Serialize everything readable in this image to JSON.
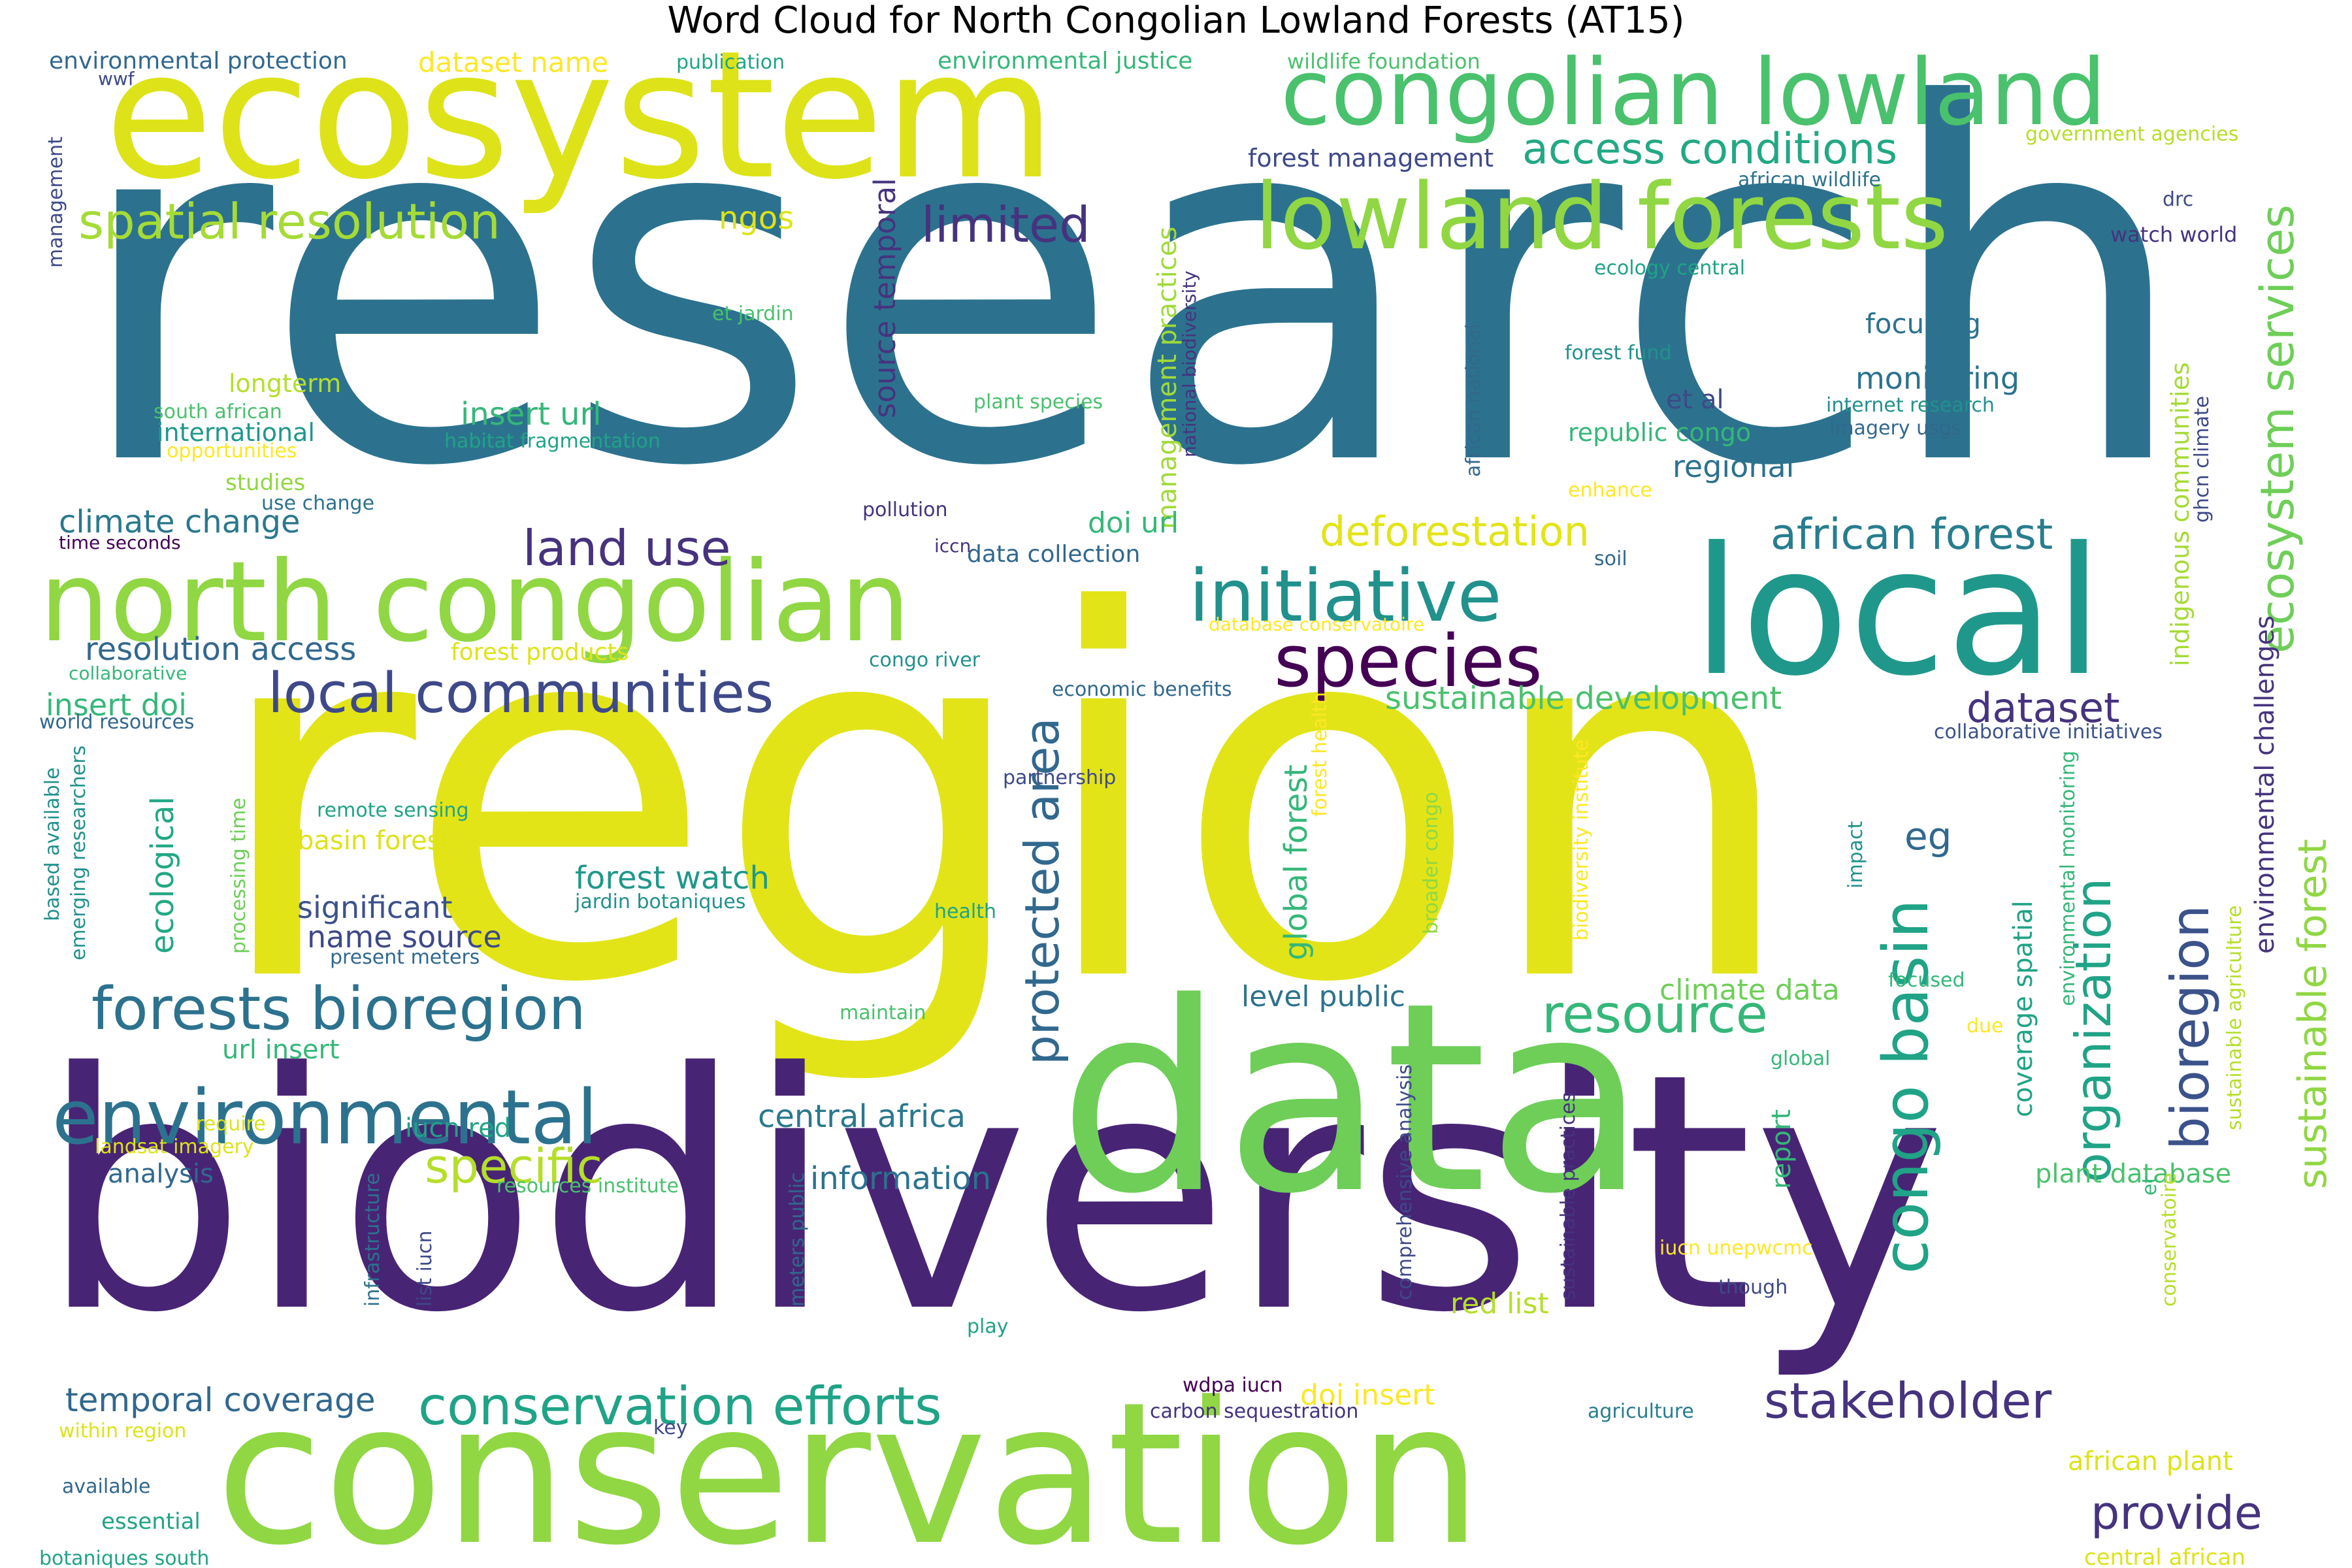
{
  "title": "Word Cloud for North Congolian Lowland Forests (AT15)",
  "palette": {
    "dark_purple": "#46337e",
    "indigo": "#482878",
    "blue": "#365c8d",
    "slate_blue": "#3e4989",
    "teal_blue": "#277f8e",
    "teal": "#1f968b",
    "green_teal": "#35b779",
    "green": "#6ece58",
    "yellow_green": "#b5de2b",
    "yellow": "#e2e418",
    "light_green": "#90d743"
  },
  "words": [
    {
      "text": "research",
      "color": "#2c728e"
    },
    {
      "text": "region",
      "color": "#e2e418"
    },
    {
      "text": "biodiversity",
      "color": "#482475"
    },
    {
      "text": "conservation",
      "color": "#90d743"
    },
    {
      "text": "data",
      "color": "#6ece58"
    },
    {
      "text": "ecosystem",
      "color": "#dde318"
    },
    {
      "text": "local",
      "color": "#1f988b"
    },
    {
      "text": "north congolian",
      "color": "#90d743"
    },
    {
      "text": "congolian lowland",
      "color": "#4ac16d"
    },
    {
      "text": "lowland forests",
      "color": "#90d743"
    },
    {
      "text": "initiative",
      "color": "#21918c"
    },
    {
      "text": "species",
      "color": "#440154"
    },
    {
      "text": "environmental",
      "color": "#2c728e"
    },
    {
      "text": "forests bioregion",
      "color": "#2c728e"
    },
    {
      "text": "local communities",
      "color": "#3e4989"
    },
    {
      "text": "conservation efforts",
      "color": "#20a386"
    },
    {
      "text": "congo basin",
      "color": "#20a386"
    },
    {
      "text": "resource",
      "color": "#35b779"
    },
    {
      "text": "ecosystem services",
      "color": "#6ece58"
    },
    {
      "text": "spatial resolution",
      "color": "#a5db36"
    },
    {
      "text": "access conditions",
      "color": "#22a884"
    },
    {
      "text": "limited",
      "color": "#46337e"
    },
    {
      "text": "land use",
      "color": "#46327e"
    },
    {
      "text": "deforestation",
      "color": "#e2e418"
    },
    {
      "text": "african forest",
      "color": "#287d8e"
    },
    {
      "text": "dataset",
      "color": "#46337e"
    },
    {
      "text": "organization",
      "color": "#20a386"
    },
    {
      "text": "bioregion",
      "color": "#3b528b"
    },
    {
      "text": "sustainable forest",
      "color": "#90d743"
    },
    {
      "text": "protected area",
      "color": "#31688e"
    },
    {
      "text": "specific",
      "color": "#b5de2b"
    },
    {
      "text": "provide",
      "color": "#46337e"
    },
    {
      "text": "stakeholder",
      "color": "#46337e"
    },
    {
      "text": "sustainable development",
      "color": "#4ac16d"
    },
    {
      "text": "climate change",
      "color": "#2a788e"
    },
    {
      "text": "resolution access",
      "color": "#31688e"
    },
    {
      "text": "insert doi",
      "color": "#35b779"
    },
    {
      "text": "insert url",
      "color": "#35b779"
    },
    {
      "text": "temporal coverage",
      "color": "#31688e"
    },
    {
      "text": "central africa",
      "color": "#2a788e"
    },
    {
      "text": "information",
      "color": "#2c728e"
    },
    {
      "text": "forest watch",
      "color": "#1f988b"
    },
    {
      "text": "significant",
      "color": "#3b528b"
    },
    {
      "text": "name source",
      "color": "#3e4989"
    },
    {
      "text": "ecological",
      "color": "#22a884"
    },
    {
      "text": "global forest",
      "color": "#35b779"
    },
    {
      "text": "climate data",
      "color": "#6ece58"
    },
    {
      "text": "level public",
      "color": "#2c728e"
    },
    {
      "text": "eg",
      "color": "#31688e"
    },
    {
      "text": "monitoring",
      "color": "#2c728e"
    },
    {
      "text": "focusing",
      "color": "#2c728e"
    },
    {
      "text": "regional",
      "color": "#2c728e"
    },
    {
      "text": "republic congo",
      "color": "#35b779"
    },
    {
      "text": "et al",
      "color": "#3e4989"
    },
    {
      "text": "ngos",
      "color": "#dde318"
    },
    {
      "text": "dataset name",
      "color": "#fde725"
    },
    {
      "text": "environmental protection",
      "color": "#31688e"
    },
    {
      "text": "publication",
      "color": "#20a386"
    },
    {
      "text": "environmental justice",
      "color": "#35b779"
    },
    {
      "text": "wildlife foundation",
      "color": "#4ac16d"
    },
    {
      "text": "forest management",
      "color": "#3e4989"
    },
    {
      "text": "government agencies",
      "color": "#b5de2b"
    },
    {
      "text": "african wildlife",
      "color": "#2c728e"
    },
    {
      "text": "drc",
      "color": "#3e4989"
    },
    {
      "text": "watch world",
      "color": "#46337e"
    },
    {
      "text": "ecology central",
      "color": "#20a386"
    },
    {
      "text": "forest fund",
      "color": "#21918c"
    },
    {
      "text": "internet research",
      "color": "#21918c"
    },
    {
      "text": "imagery usgs",
      "color": "#31688e"
    },
    {
      "text": "enhance",
      "color": "#fde725"
    },
    {
      "text": "source temporal",
      "color": "#46337e"
    },
    {
      "text": "management practices",
      "color": "#a0da39"
    },
    {
      "text": "national biodiversity",
      "color": "#46337e"
    },
    {
      "text": "african national",
      "color": "#31688e"
    },
    {
      "text": "indigenous communities",
      "color": "#a5db36"
    },
    {
      "text": "ghcn climate",
      "color": "#3e4989"
    },
    {
      "text": "management",
      "color": "#3e4989"
    },
    {
      "text": "wwf",
      "color": "#3e4989"
    },
    {
      "text": "et jardin",
      "color": "#4ac16d"
    },
    {
      "text": "longterm",
      "color": "#b5de2b"
    },
    {
      "text": "south african",
      "color": "#4ac16d"
    },
    {
      "text": "international",
      "color": "#1f988b"
    },
    {
      "text": "opportunities",
      "color": "#fde725"
    },
    {
      "text": "studies",
      "color": "#90d743"
    },
    {
      "text": "use change",
      "color": "#2c728e"
    },
    {
      "text": "habitat fragmentation",
      "color": "#20a386"
    },
    {
      "text": "plant species",
      "color": "#4ac16d"
    },
    {
      "text": "time seconds",
      "color": "#440154"
    },
    {
      "text": "pollution",
      "color": "#46337e"
    },
    {
      "text": "iccn",
      "color": "#46337e"
    },
    {
      "text": "doi url",
      "color": "#35b779"
    },
    {
      "text": "data collection",
      "color": "#31688e"
    },
    {
      "text": "soil",
      "color": "#31688e"
    },
    {
      "text": "database conservatoire",
      "color": "#fde725"
    },
    {
      "text": "forest products",
      "color": "#dde318"
    },
    {
      "text": "congo river",
      "color": "#21918c"
    },
    {
      "text": "economic benefits",
      "color": "#31688e"
    },
    {
      "text": "collaborative",
      "color": "#35b779"
    },
    {
      "text": "world resources",
      "color": "#31688e"
    },
    {
      "text": "collaborative initiatives",
      "color": "#3b528b"
    },
    {
      "text": "partnership",
      "color": "#3e4989"
    },
    {
      "text": "remote sensing",
      "color": "#20a386"
    },
    {
      "text": "basin forest",
      "color": "#dde318"
    },
    {
      "text": "jardin botaniques",
      "color": "#21918c"
    },
    {
      "text": "present meters",
      "color": "#31688e"
    },
    {
      "text": "health",
      "color": "#20a386"
    },
    {
      "text": "based available",
      "color": "#21918c"
    },
    {
      "text": "emerging researchers",
      "color": "#21918c"
    },
    {
      "text": "processing time",
      "color": "#6ece58"
    },
    {
      "text": "maintain",
      "color": "#4ac16d"
    },
    {
      "text": "url insert",
      "color": "#35b779"
    },
    {
      "text": "iucn red",
      "color": "#20a386"
    },
    {
      "text": "require",
      "color": "#dde318"
    },
    {
      "text": "landsat imagery",
      "color": "#dde318"
    },
    {
      "text": "analysis",
      "color": "#31688e"
    },
    {
      "text": "resources institute",
      "color": "#4ac16d"
    },
    {
      "text": "infrastructure",
      "color": "#2c728e"
    },
    {
      "text": "list iucn",
      "color": "#3e4989"
    },
    {
      "text": "meters public",
      "color": "#31688e"
    },
    {
      "text": "play",
      "color": "#20a386"
    },
    {
      "text": "comprehensive analysis",
      "color": "#3e4989"
    },
    {
      "text": "sustainable practices",
      "color": "#46337e"
    },
    {
      "text": "red list",
      "color": "#b5de2b"
    },
    {
      "text": "doi insert",
      "color": "#fde725"
    },
    {
      "text": "wdpa iucn",
      "color": "#440154"
    },
    {
      "text": "carbon sequestration",
      "color": "#46337e"
    },
    {
      "text": "agriculture",
      "color": "#287d8e"
    },
    {
      "text": "key",
      "color": "#3e4989"
    },
    {
      "text": "within region",
      "color": "#dde318"
    },
    {
      "text": "available",
      "color": "#31688e"
    },
    {
      "text": "essential",
      "color": "#20a386"
    },
    {
      "text": "botaniques south",
      "color": "#20a386"
    },
    {
      "text": "african plant",
      "color": "#dde318"
    },
    {
      "text": "central african",
      "color": "#dde318"
    },
    {
      "text": "iucn unepwcmc",
      "color": "#fde725"
    },
    {
      "text": "though",
      "color": "#3e4989"
    },
    {
      "text": "report",
      "color": "#35b779"
    },
    {
      "text": "plant database",
      "color": "#4ac16d"
    },
    {
      "text": "et",
      "color": "#35b779"
    },
    {
      "text": "conservatoire",
      "color": "#b5de2b"
    },
    {
      "text": "coverage spatial",
      "color": "#20a386"
    },
    {
      "text": "environmental monitoring",
      "color": "#35b779"
    },
    {
      "text": "impact",
      "color": "#21918c"
    },
    {
      "text": "broader congo",
      "color": "#90d743"
    },
    {
      "text": "biodiversity institute",
      "color": "#fde725"
    },
    {
      "text": "forest health",
      "color": "#fde725"
    },
    {
      "text": "environmental challenges",
      "color": "#46337e"
    },
    {
      "text": "sustainable agriculture",
      "color": "#b5de2b"
    },
    {
      "text": "focused",
      "color": "#35b779"
    },
    {
      "text": "due",
      "color": "#fde725"
    },
    {
      "text": "global",
      "color": "#35b779"
    }
  ]
}
